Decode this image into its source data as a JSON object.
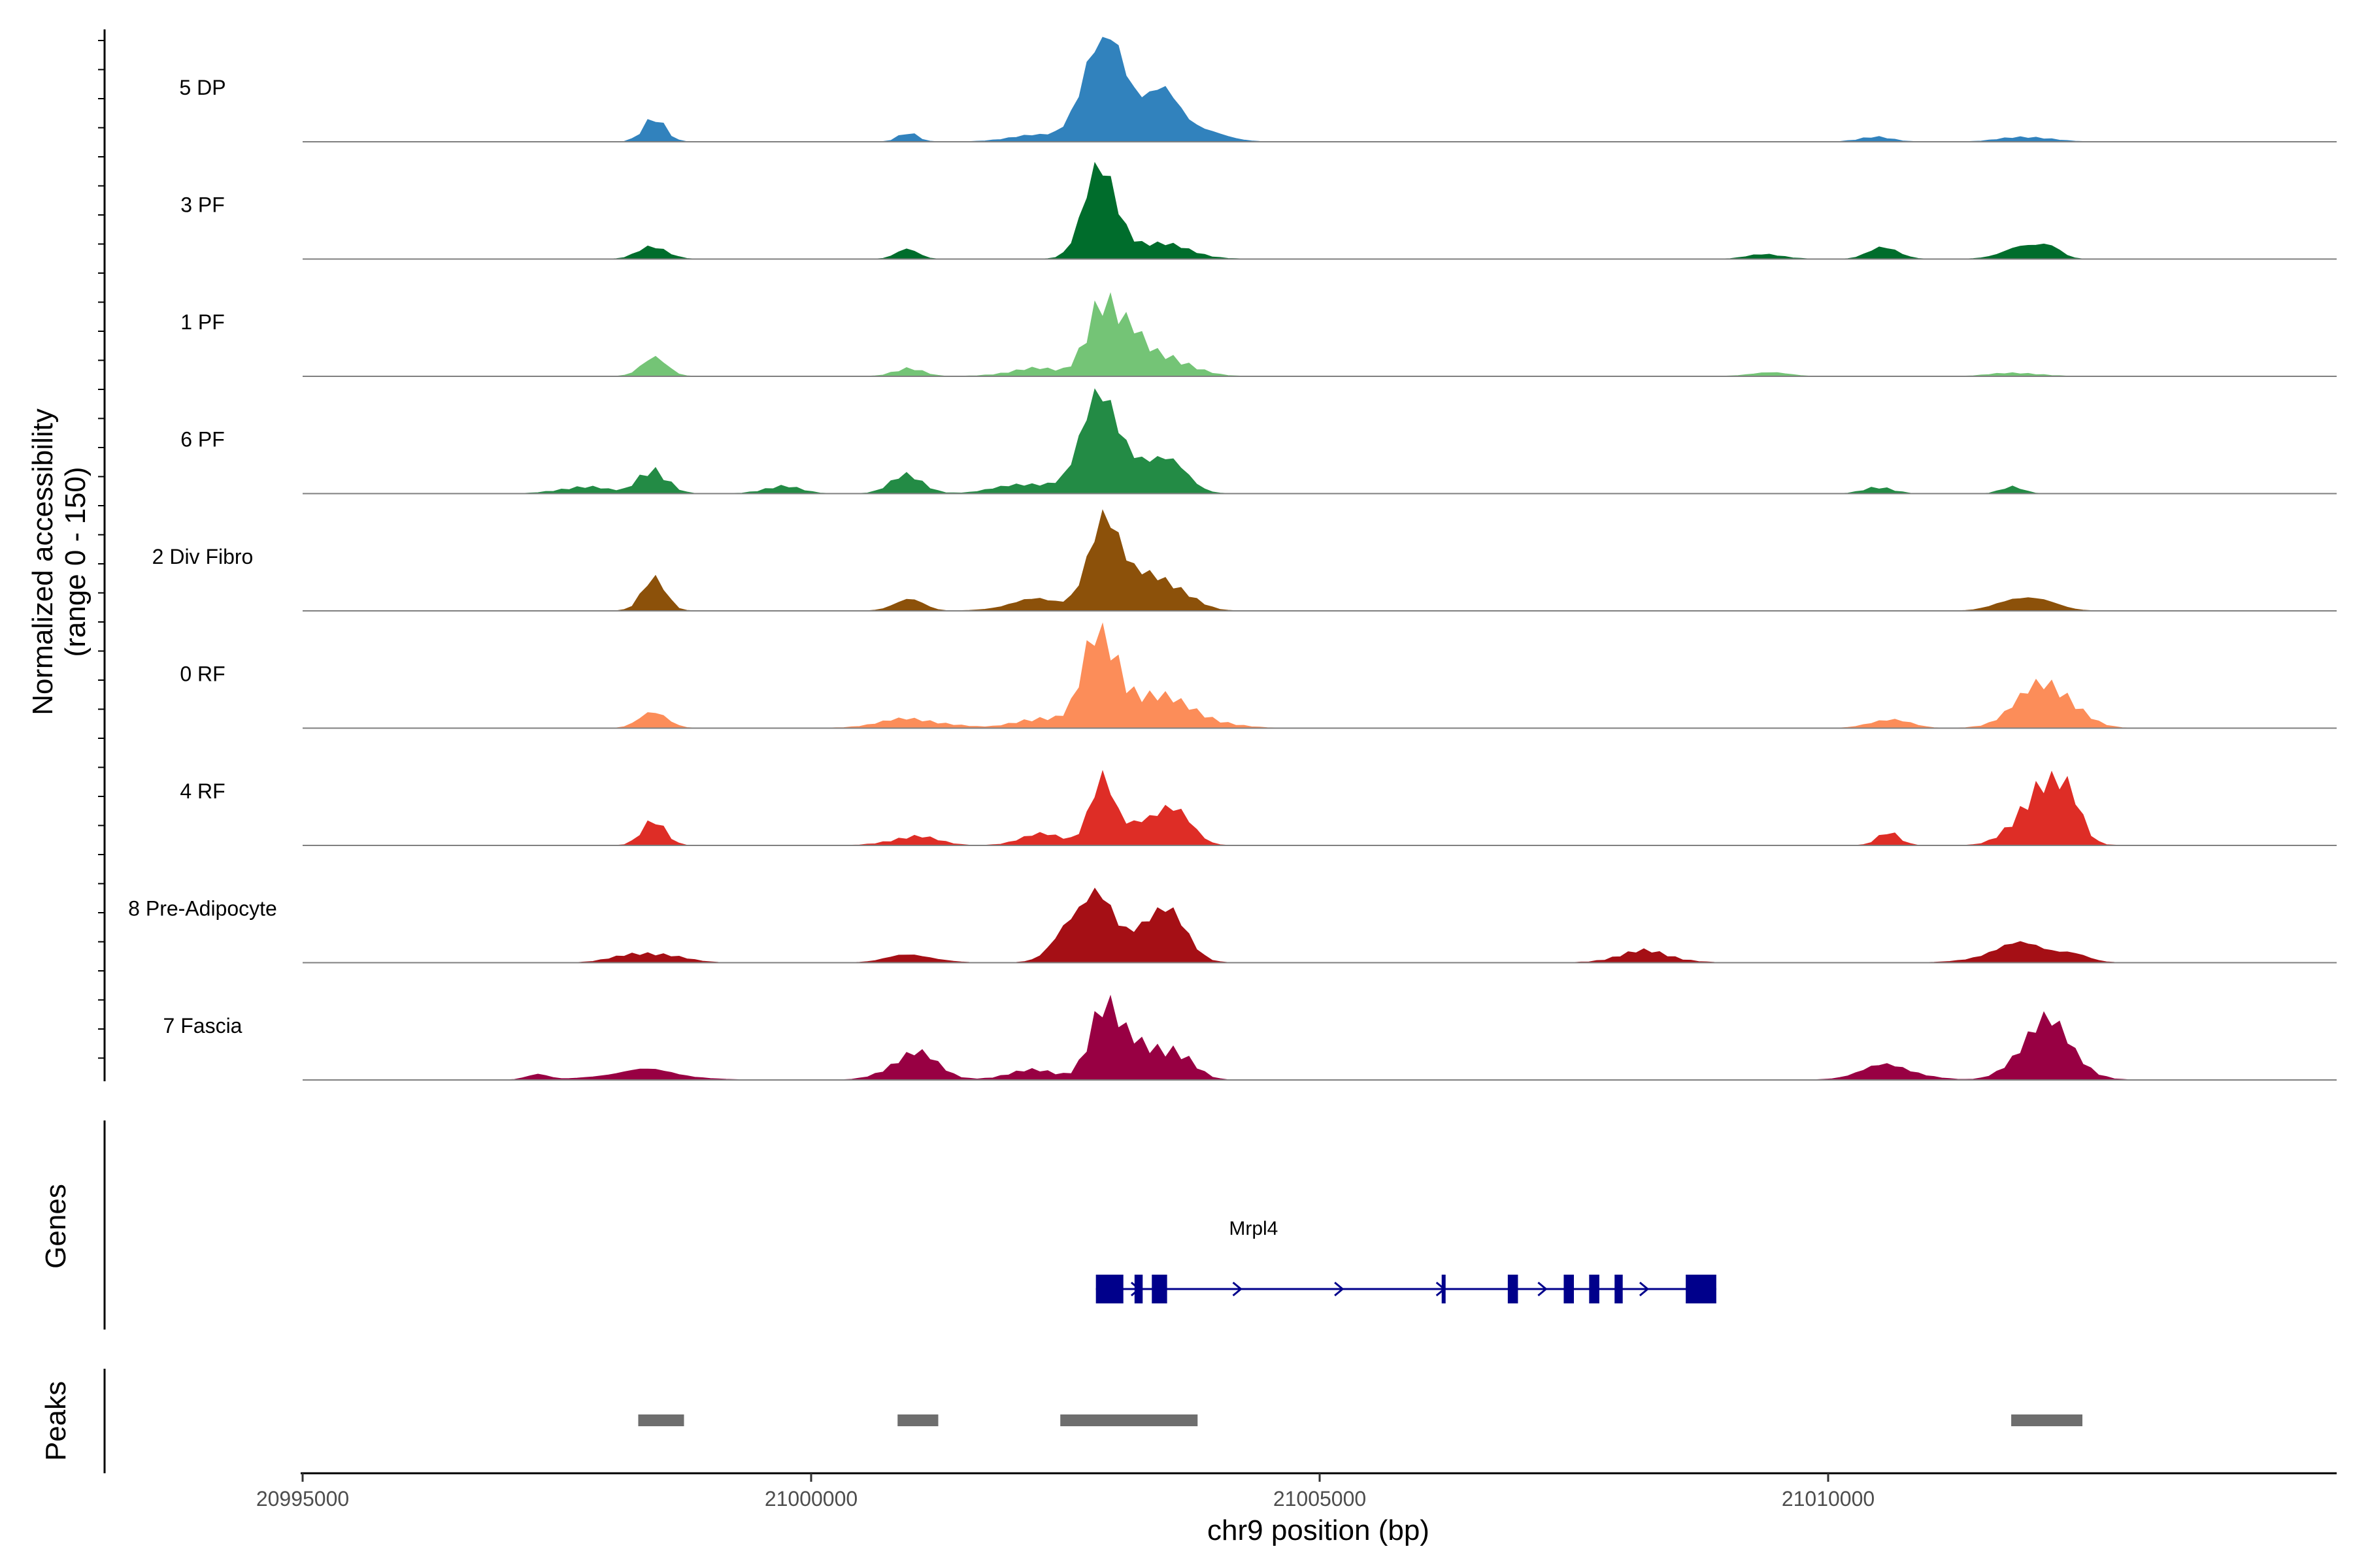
{
  "chart_data": {
    "type": "area",
    "title": "",
    "ylabel": "Normalized accessibility",
    "ylabel_range": "(range 0 - 150)",
    "xlabel": "chr9 position (bp)",
    "xlim": [
      20995000,
      21015000
    ],
    "ylim": [
      0,
      150
    ],
    "x_ticks": [
      20995000,
      21000000,
      21005000,
      21010000
    ],
    "x_tick_labels": [
      "20995000",
      "21000000",
      "21005000",
      "21010000"
    ],
    "track_colors": {
      "5 DP": "#3182bd",
      "3 PF": "#006d2c",
      "1 PF": "#74c476",
      "6 PF": "#238b45",
      "2 Div Fibro": "#8c510a",
      "0 RF": "#fc8d59",
      "4 RF": "#de2d26",
      "8 Pre-Adipocyte": "#a50f15",
      "7 Fascia": "#980043"
    },
    "series": [
      {
        "name": "5 DP",
        "peaks": [
          [
            20998450,
            120,
            12
          ],
          [
            21000950,
            60,
            10
          ],
          [
            21002100,
            30,
            25
          ],
          [
            21002850,
            600,
            18
          ],
          [
            21003100,
            160,
            40
          ],
          [
            21003500,
            180,
            15
          ],
          [
            21003700,
            70,
            30
          ],
          [
            21010450,
            25,
            18
          ],
          [
            21011950,
            30,
            25
          ]
        ]
      },
      {
        "name": "3 PF",
        "peaks": [
          [
            20998450,
            80,
            15
          ],
          [
            21000950,
            50,
            12
          ],
          [
            21002850,
            450,
            18
          ],
          [
            21003350,
            90,
            35
          ],
          [
            21009400,
            25,
            20
          ],
          [
            21010550,
            80,
            15
          ],
          [
            21011900,
            65,
            22
          ],
          [
            21012200,
            55,
            12
          ]
        ]
      },
      {
        "name": "1 PF",
        "peaks": [
          [
            20998450,
            95,
            14
          ],
          [
            21000950,
            50,
            15
          ],
          [
            21002200,
            40,
            30
          ],
          [
            21002850,
            450,
            16
          ],
          [
            21003150,
            140,
            12
          ],
          [
            21003450,
            130,
            28
          ],
          [
            21009400,
            22,
            20
          ],
          [
            21011850,
            20,
            25
          ]
        ]
      },
      {
        "name": "6 PF",
        "peaks": [
          [
            20997750,
            40,
            25
          ],
          [
            20998450,
            150,
            15
          ],
          [
            20999700,
            40,
            20
          ],
          [
            21000950,
            95,
            18
          ],
          [
            21002200,
            60,
            35
          ],
          [
            21002850,
            480,
            20
          ],
          [
            21003200,
            160,
            25
          ],
          [
            21003550,
            120,
            20
          ],
          [
            21010500,
            40,
            15
          ],
          [
            21011800,
            35,
            12
          ]
        ]
      },
      {
        "name": "2 Div Fibro",
        "peaks": [
          [
            20998450,
            160,
            13
          ],
          [
            21000950,
            75,
            15
          ],
          [
            21002200,
            60,
            30
          ],
          [
            21002850,
            480,
            16
          ],
          [
            21003200,
            160,
            30
          ],
          [
            21003550,
            110,
            22
          ],
          [
            21011950,
            90,
            25
          ]
        ]
      },
      {
        "name": "0 RF",
        "peaks": [
          [
            20998450,
            110,
            14
          ],
          [
            21001000,
            50,
            35
          ],
          [
            21002250,
            60,
            25
          ],
          [
            21002850,
            490,
            18
          ],
          [
            21003200,
            140,
            30
          ],
          [
            21003650,
            90,
            35
          ],
          [
            21010600,
            55,
            20
          ],
          [
            21012100,
            200,
            30
          ],
          [
            21012300,
            80,
            20
          ]
        ]
      },
      {
        "name": "4 RF",
        "peaks": [
          [
            20998450,
            120,
            13
          ],
          [
            21001000,
            50,
            25
          ],
          [
            21002300,
            60,
            25
          ],
          [
            21002850,
            380,
            13
          ],
          [
            21003200,
            90,
            15
          ],
          [
            21003550,
            260,
            18
          ],
          [
            21010600,
            65,
            12
          ],
          [
            21012100,
            350,
            25
          ],
          [
            21012400,
            120,
            12
          ]
        ]
      },
      {
        "name": "8 Pre-Adipocyte",
        "peaks": [
          [
            20998400,
            60,
            30
          ],
          [
            21001000,
            45,
            25
          ],
          [
            21002550,
            190,
            20
          ],
          [
            21002850,
            300,
            15
          ],
          [
            21003200,
            180,
            25
          ],
          [
            21003550,
            200,
            20
          ],
          [
            21008200,
            60,
            30
          ],
          [
            21011900,
            100,
            35
          ],
          [
            21012400,
            40,
            15
          ]
        ]
      },
      {
        "name": "7 Fascia",
        "peaks": [
          [
            20997300,
            30,
            12
          ],
          [
            20998350,
            55,
            40
          ],
          [
            21001000,
            150,
            25
          ],
          [
            21002200,
            50,
            30
          ],
          [
            21002850,
            350,
            15
          ],
          [
            21003150,
            180,
            20
          ],
          [
            21003550,
            180,
            20
          ],
          [
            21010600,
            80,
            30
          ],
          [
            21012100,
            330,
            25
          ],
          [
            21012500,
            35,
            20
          ]
        ]
      }
    ],
    "genes_label": "Genes",
    "gene": {
      "name": "Mrpl4",
      "start": 21002800,
      "end": 21008900,
      "exons": [
        [
          21002800,
          21003070
        ],
        [
          21003180,
          21003260
        ],
        [
          21003350,
          21003500
        ],
        [
          21006200,
          21006230
        ],
        [
          21006850,
          21006950
        ],
        [
          21007400,
          21007500
        ],
        [
          21007650,
          21007750
        ],
        [
          21007900,
          21007980
        ],
        [
          21008600,
          21008900
        ]
      ]
    },
    "peaks_label": "Peaks",
    "peak_regions": [
      [
        20998300,
        20998750
      ],
      [
        21000850,
        21001250
      ],
      [
        21002450,
        21003800
      ],
      [
        21011800,
        21012500
      ]
    ]
  }
}
